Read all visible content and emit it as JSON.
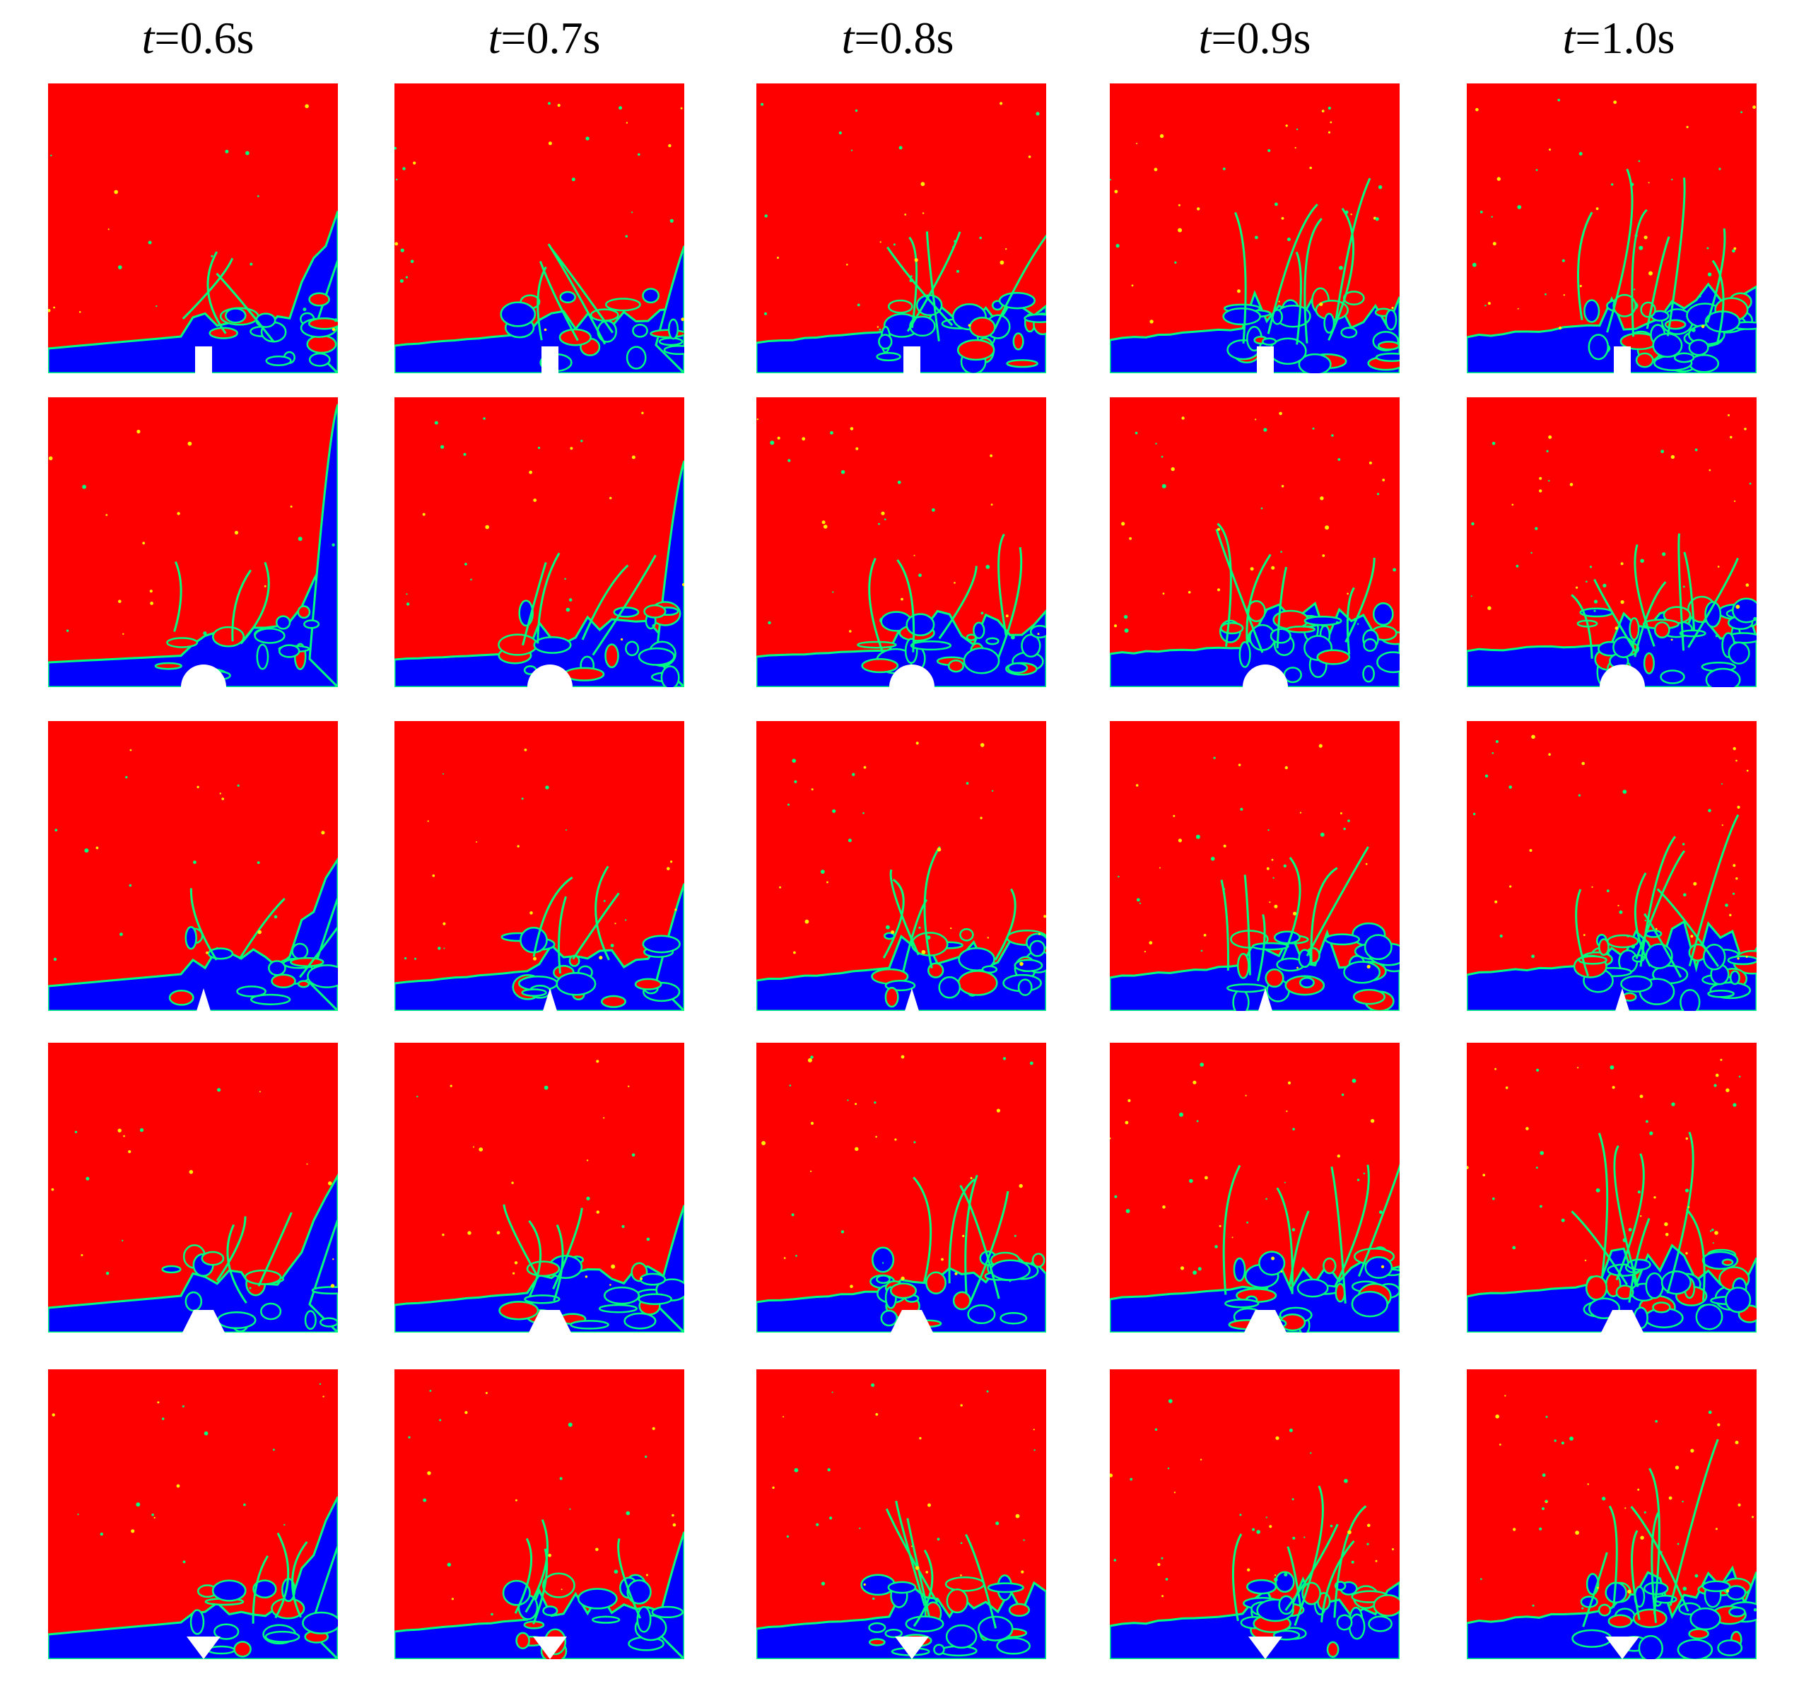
{
  "figure": {
    "columns": [
      {
        "var": "t",
        "value": "=0.6s"
      },
      {
        "var": "t",
        "value": "=0.7s"
      },
      {
        "var": "t",
        "value": "=0.8s"
      },
      {
        "var": "t",
        "value": "=0.9s"
      },
      {
        "var": "t",
        "value": "=1.0s"
      }
    ],
    "rows": [
      {
        "obstacle": "rectangle"
      },
      {
        "obstacle": "semicircle"
      },
      {
        "obstacle": "triangle"
      },
      {
        "obstacle": "trapezoid"
      },
      {
        "obstacle": "inverted-triangle"
      }
    ],
    "colors": {
      "air": "#ff0000",
      "water": "#0000ff",
      "interface": "#00ff80",
      "interface_edge": "#ffee00",
      "obstacle": "#ffffff"
    }
  }
}
